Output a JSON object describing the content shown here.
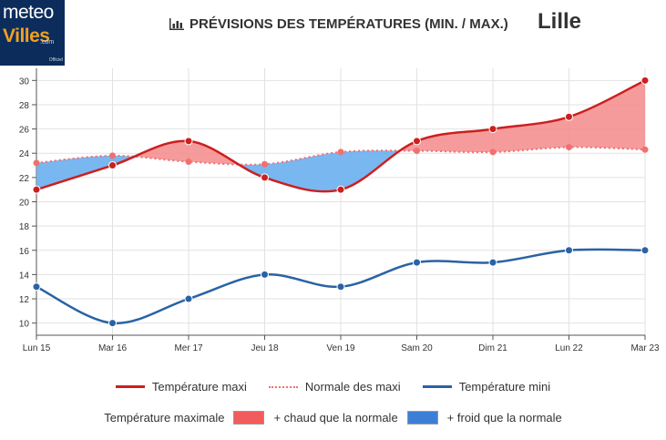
{
  "logo": {
    "line1": "meteo",
    "line2": "Villes",
    "line3": ".com",
    "line4": "Officiel"
  },
  "header": {
    "title": "PRÉVISIONS DES TEMPÉRATURES (MIN. / MAX.)",
    "city": "Lille",
    "icon": "bar-chart-icon"
  },
  "colors": {
    "max": "#cc1f1f",
    "normal": "#f07070",
    "min": "#2a62a5",
    "warm_fill": "#f58a8a",
    "cold_fill": "#6aaff0",
    "grid": "#e2e2e2",
    "axis": "#555555"
  },
  "legend": {
    "row1": [
      "Température maxi",
      "Normale des maxi",
      "Température mini"
    ],
    "row2": {
      "label": "Température maximale",
      "warm": "+ chaud que la normale",
      "cold": "+ froid que la normale"
    }
  },
  "chart_data": {
    "type": "line",
    "categories": [
      "Lun 15",
      "Mar 16",
      "Mer 17",
      "Jeu 18",
      "Ven 19",
      "Sam 20",
      "Dim 21",
      "Lun 22",
      "Mar 23"
    ],
    "series": [
      {
        "name": "Température maxi",
        "values": [
          21,
          23,
          25,
          22,
          21,
          25,
          26,
          27,
          30
        ]
      },
      {
        "name": "Normale des maxi",
        "values": [
          23.2,
          23.8,
          23.3,
          23.1,
          24.1,
          24.2,
          24.1,
          24.5,
          24.3
        ]
      },
      {
        "name": "Température mini",
        "values": [
          13,
          10,
          12,
          14,
          13,
          15,
          15,
          16,
          16
        ]
      }
    ],
    "ylim": [
      9,
      31
    ],
    "yticks": [
      10,
      12,
      14,
      16,
      18,
      20,
      22,
      24,
      26,
      28,
      30
    ],
    "grid": true,
    "legend_position": "bottom"
  }
}
